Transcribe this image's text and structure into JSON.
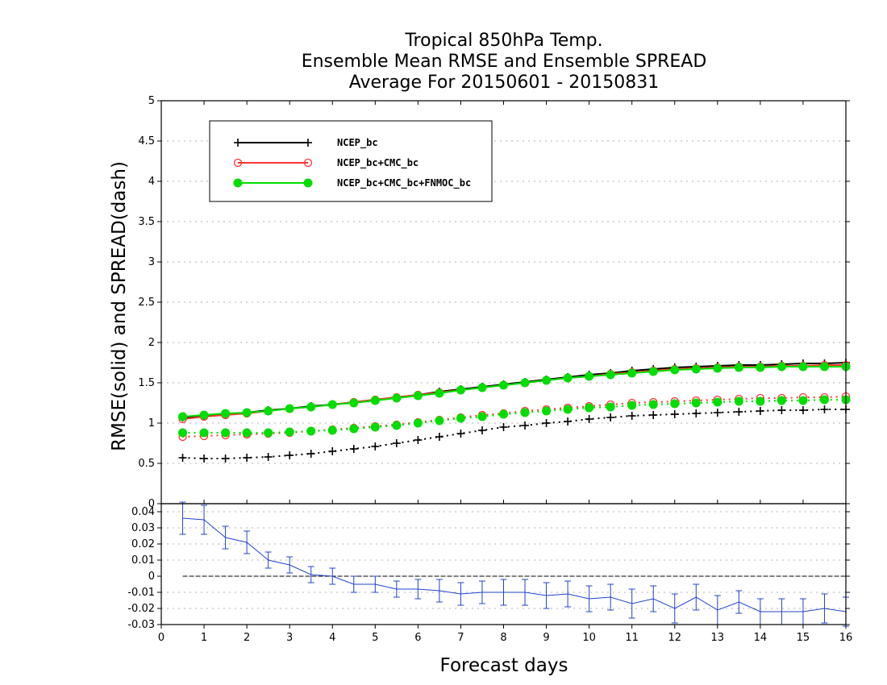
{
  "chart_data": [
    {
      "type": "line",
      "title": [
        "Tropical 850hPa Temp.",
        "Ensemble Mean RMSE and Ensemble SPREAD",
        "Average For 20150601 - 20150831"
      ],
      "xlabel": "Forecast days",
      "ylabel": "RMSE(solid) and SPREAD(dash)",
      "xlim": [
        0,
        16
      ],
      "ylim": [
        0,
        5
      ],
      "x_ticks": [
        "0",
        "1",
        "2",
        "3",
        "4",
        "5",
        "6",
        "7",
        "8",
        "9",
        "10",
        "11",
        "12",
        "13",
        "14",
        "15",
        "16"
      ],
      "y_ticks": [
        "0",
        "0.5",
        "1",
        "1.5",
        "2",
        "2.5",
        "3",
        "3.5",
        "4",
        "4.5",
        "5"
      ],
      "grid": "horizontal dotted",
      "legend_position": "top-left",
      "x": [
        0.5,
        1,
        1.5,
        2,
        2.5,
        3,
        3.5,
        4,
        4.5,
        5,
        5.5,
        6,
        6.5,
        7,
        7.5,
        8,
        8.5,
        9,
        9.5,
        10,
        10.5,
        11,
        11.5,
        12,
        12.5,
        13,
        13.5,
        14,
        14.5,
        15,
        15.5,
        16
      ],
      "series": [
        {
          "name": "NCEP_bc",
          "color": "#000000",
          "marker": "plus",
          "rmse": [
            1.07,
            1.09,
            1.11,
            1.13,
            1.16,
            1.18,
            1.21,
            1.23,
            1.26,
            1.29,
            1.32,
            1.35,
            1.39,
            1.42,
            1.45,
            1.48,
            1.51,
            1.54,
            1.57,
            1.6,
            1.62,
            1.65,
            1.67,
            1.69,
            1.7,
            1.71,
            1.72,
            1.72,
            1.73,
            1.74,
            1.74,
            1.75
          ],
          "spread": [
            0.57,
            0.56,
            0.56,
            0.57,
            0.58,
            0.6,
            0.62,
            0.65,
            0.68,
            0.71,
            0.75,
            0.79,
            0.83,
            0.87,
            0.91,
            0.95,
            0.97,
            1.0,
            1.02,
            1.05,
            1.07,
            1.09,
            1.1,
            1.11,
            1.12,
            1.13,
            1.14,
            1.15,
            1.16,
            1.16,
            1.17,
            1.17
          ]
        },
        {
          "name": "NCEP_bc+CMC_bc",
          "color": "#ff3333",
          "marker": "open-circle",
          "rmse": [
            1.05,
            1.08,
            1.1,
            1.12,
            1.15,
            1.18,
            1.2,
            1.23,
            1.26,
            1.29,
            1.32,
            1.35,
            1.38,
            1.41,
            1.44,
            1.47,
            1.5,
            1.53,
            1.56,
            1.58,
            1.61,
            1.63,
            1.65,
            1.67,
            1.68,
            1.69,
            1.7,
            1.7,
            1.71,
            1.71,
            1.72,
            1.72
          ],
          "spread": [
            0.83,
            0.84,
            0.85,
            0.86,
            0.87,
            0.88,
            0.9,
            0.92,
            0.94,
            0.96,
            0.98,
            1.01,
            1.04,
            1.07,
            1.1,
            1.12,
            1.15,
            1.17,
            1.19,
            1.21,
            1.23,
            1.25,
            1.26,
            1.27,
            1.28,
            1.29,
            1.3,
            1.31,
            1.31,
            1.32,
            1.32,
            1.33
          ]
        },
        {
          "name": "NCEP_bc+CMC_bc+FNMOC_bc",
          "color": "#00dd00",
          "marker": "filled-circle",
          "rmse": [
            1.08,
            1.1,
            1.12,
            1.13,
            1.15,
            1.18,
            1.2,
            1.23,
            1.25,
            1.28,
            1.31,
            1.34,
            1.37,
            1.41,
            1.44,
            1.47,
            1.5,
            1.53,
            1.56,
            1.58,
            1.6,
            1.62,
            1.64,
            1.66,
            1.67,
            1.68,
            1.69,
            1.69,
            1.7,
            1.7,
            1.7,
            1.7
          ],
          "spread": [
            0.88,
            0.88,
            0.88,
            0.88,
            0.88,
            0.89,
            0.9,
            0.91,
            0.93,
            0.95,
            0.97,
            1.0,
            1.03,
            1.06,
            1.08,
            1.11,
            1.13,
            1.15,
            1.17,
            1.19,
            1.2,
            1.22,
            1.23,
            1.24,
            1.25,
            1.26,
            1.27,
            1.27,
            1.28,
            1.28,
            1.29,
            1.29
          ]
        }
      ]
    },
    {
      "type": "line",
      "xlim": [
        0,
        16
      ],
      "ylim": [
        -0.03,
        0.045
      ],
      "y_ticks": [
        "-0.03",
        "-0.02",
        "-0.01",
        "0",
        "0.01",
        "0.02",
        "0.03",
        "0.04"
      ],
      "grid": "horizontal dotted",
      "zero_line": true,
      "series": [
        {
          "color": "#2244cc",
          "marker": "error-bar",
          "x": [
            0.5,
            1,
            1.5,
            2,
            2.5,
            3,
            3.5,
            4,
            4.5,
            5,
            5.5,
            6,
            6.5,
            7,
            7.5,
            8,
            8.5,
            9,
            9.5,
            10,
            10.5,
            11,
            11.5,
            12,
            12.5,
            13,
            13.5,
            14,
            14.5,
            15,
            15.5,
            16
          ],
          "values": [
            0.036,
            0.035,
            0.024,
            0.021,
            0.01,
            0.007,
            0.001,
            0.0,
            -0.005,
            -0.005,
            -0.008,
            -0.008,
            -0.009,
            -0.011,
            -0.01,
            -0.01,
            -0.01,
            -0.012,
            -0.011,
            -0.014,
            -0.013,
            -0.017,
            -0.014,
            -0.02,
            -0.013,
            -0.021,
            -0.016,
            -0.022,
            -0.022,
            -0.022,
            -0.02,
            -0.022
          ],
          "error": [
            0.01,
            0.009,
            0.007,
            0.007,
            0.005,
            0.005,
            0.005,
            0.005,
            0.005,
            0.005,
            0.005,
            0.006,
            0.007,
            0.007,
            0.007,
            0.008,
            0.008,
            0.008,
            0.008,
            0.008,
            0.008,
            0.009,
            0.008,
            0.009,
            0.008,
            0.009,
            0.007,
            0.008,
            0.008,
            0.008,
            0.009,
            0.009
          ]
        }
      ]
    }
  ]
}
